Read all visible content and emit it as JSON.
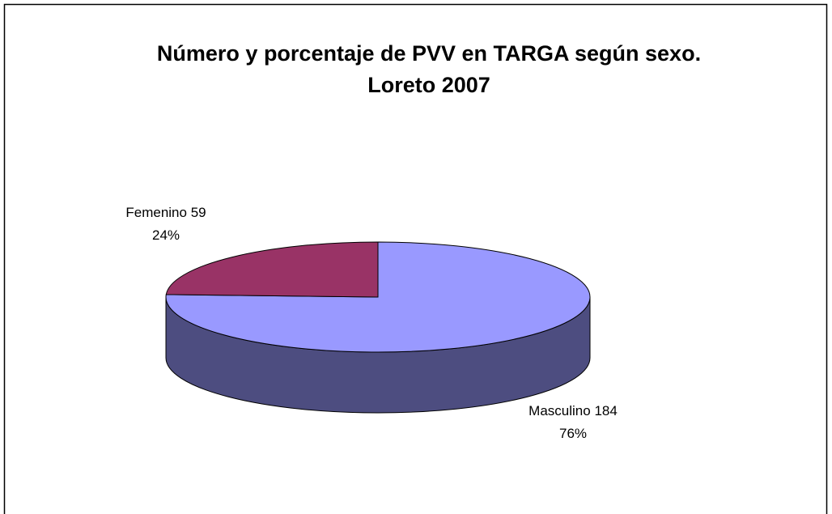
{
  "chart_data": {
    "type": "pie3d",
    "title": [
      "Número y porcentaje de PVV en TARGA según sexo.",
      "Loreto 2007"
    ],
    "categories": [
      "Femenino",
      "Masculino"
    ],
    "values": [
      59,
      184
    ],
    "percent_labels": [
      "24%",
      "76%"
    ],
    "colors": [
      "#993366",
      "#9999FF"
    ]
  }
}
